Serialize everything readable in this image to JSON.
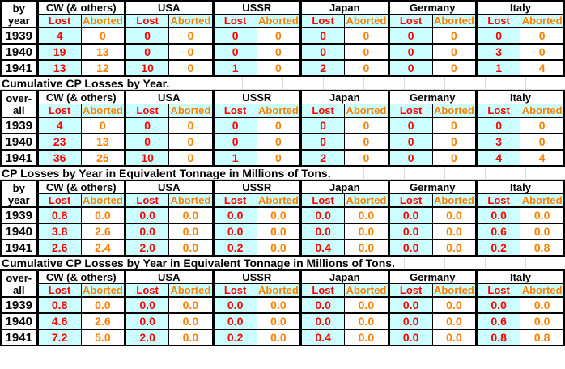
{
  "sheet": {
    "countries": [
      "CW (& others)",
      "USA",
      "USSR",
      "Japan",
      "Germany",
      "Italy"
    ],
    "sub_headers": {
      "lost": "Lost",
      "aborted": "Aborted"
    },
    "colors": {
      "lost_text": "#ff0000",
      "aborted_text": "#ff8000",
      "lost_cell_bg": "#ccffff",
      "grid_line": "#000000",
      "faint_grid_line": "#d9d9d9"
    },
    "tables": [
      {
        "title": "",
        "row_label_line1": "by",
        "row_label_line2": "year",
        "rows": [
          {
            "year": "1939",
            "values": [
              [
                "4",
                "0"
              ],
              [
                "0",
                "0"
              ],
              [
                "0",
                "0"
              ],
              [
                "0",
                "0"
              ],
              [
                "0",
                "0"
              ],
              [
                "0",
                "0"
              ]
            ]
          },
          {
            "year": "1940",
            "values": [
              [
                "19",
                "13"
              ],
              [
                "0",
                "0"
              ],
              [
                "0",
                "0"
              ],
              [
                "0",
                "0"
              ],
              [
                "0",
                "0"
              ],
              [
                "3",
                "0"
              ]
            ]
          },
          {
            "year": "1941",
            "values": [
              [
                "13",
                "12"
              ],
              [
                "10",
                "0"
              ],
              [
                "1",
                "0"
              ],
              [
                "2",
                "0"
              ],
              [
                "0",
                "0"
              ],
              [
                "1",
                "4"
              ]
            ]
          }
        ]
      },
      {
        "title": "Cumulative CP Losses by Year.",
        "row_label_line1": "over-",
        "row_label_line2": "all",
        "rows": [
          {
            "year": "1939",
            "values": [
              [
                "4",
                "0"
              ],
              [
                "0",
                "0"
              ],
              [
                "0",
                "0"
              ],
              [
                "0",
                "0"
              ],
              [
                "0",
                "0"
              ],
              [
                "0",
                "0"
              ]
            ]
          },
          {
            "year": "1940",
            "values": [
              [
                "23",
                "13"
              ],
              [
                "0",
                "0"
              ],
              [
                "0",
                "0"
              ],
              [
                "0",
                "0"
              ],
              [
                "0",
                "0"
              ],
              [
                "3",
                "0"
              ]
            ]
          },
          {
            "year": "1941",
            "values": [
              [
                "36",
                "25"
              ],
              [
                "10",
                "0"
              ],
              [
                "1",
                "0"
              ],
              [
                "2",
                "0"
              ],
              [
                "0",
                "0"
              ],
              [
                "4",
                "4"
              ]
            ]
          }
        ]
      },
      {
        "title": "CP Losses by Year in Equivalent Tonnage in Millions of Tons.",
        "row_label_line1": "by",
        "row_label_line2": "year",
        "rows": [
          {
            "year": "1939",
            "values": [
              [
                "0.8",
                "0.0"
              ],
              [
                "0.0",
                "0.0"
              ],
              [
                "0.0",
                "0.0"
              ],
              [
                "0.0",
                "0.0"
              ],
              [
                "0.0",
                "0.0"
              ],
              [
                "0.0",
                "0.0"
              ]
            ]
          },
          {
            "year": "1940",
            "values": [
              [
                "3.8",
                "2.6"
              ],
              [
                "0.0",
                "0.0"
              ],
              [
                "0.0",
                "0.0"
              ],
              [
                "0.0",
                "0.0"
              ],
              [
                "0.0",
                "0.0"
              ],
              [
                "0.6",
                "0.0"
              ]
            ]
          },
          {
            "year": "1941",
            "values": [
              [
                "2.6",
                "2.4"
              ],
              [
                "2.0",
                "0.0"
              ],
              [
                "0.2",
                "0.0"
              ],
              [
                "0.4",
                "0.0"
              ],
              [
                "0.0",
                "0.0"
              ],
              [
                "0.2",
                "0.8"
              ]
            ]
          }
        ]
      },
      {
        "title": "Cumulative CP Losses by Year in Equivalent Tonnage in Millions of Tons.",
        "row_label_line1": "over-",
        "row_label_line2": "all",
        "rows": [
          {
            "year": "1939",
            "values": [
              [
                "0.8",
                "0.0"
              ],
              [
                "0.0",
                "0.0"
              ],
              [
                "0.0",
                "0.0"
              ],
              [
                "0.0",
                "0.0"
              ],
              [
                "0.0",
                "0.0"
              ],
              [
                "0.0",
                "0.0"
              ]
            ]
          },
          {
            "year": "1940",
            "values": [
              [
                "4.6",
                "2.6"
              ],
              [
                "0.0",
                "0.0"
              ],
              [
                "0.0",
                "0.0"
              ],
              [
                "0.0",
                "0.0"
              ],
              [
                "0.0",
                "0.0"
              ],
              [
                "0.6",
                "0.0"
              ]
            ]
          },
          {
            "year": "1941",
            "values": [
              [
                "7.2",
                "5.0"
              ],
              [
                "2.0",
                "0.0"
              ],
              [
                "0.2",
                "0.0"
              ],
              [
                "0.4",
                "0.0"
              ],
              [
                "0.0",
                "0.0"
              ],
              [
                "0.8",
                "0.8"
              ]
            ]
          }
        ]
      }
    ]
  }
}
